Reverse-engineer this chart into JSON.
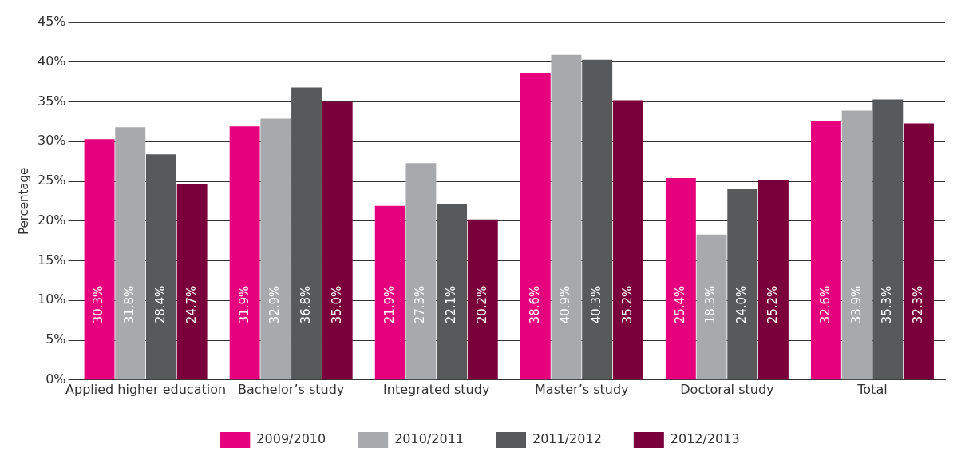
{
  "chart_data": {
    "type": "bar",
    "ylabel": "Percentage",
    "categories": [
      "Applied higher education",
      "Bachelor’s study",
      "Integrated study",
      "Master’s study",
      "Doctoral study",
      "Total"
    ],
    "series": [
      {
        "name": "2009/2010",
        "color": "#e6007e",
        "values": [
          30.3,
          31.9,
          21.9,
          38.6,
          25.4,
          32.6
        ],
        "value_labels": [
          "30.3%",
          "31.9%",
          "21.9%",
          "38.6%",
          "25.4%",
          "32.6%"
        ]
      },
      {
        "name": "2010/2011",
        "color": "#a7a9ac",
        "values": [
          31.8,
          32.9,
          27.3,
          40.9,
          18.3,
          33.9
        ],
        "value_labels": [
          "31.8%",
          "32.9%",
          "27.3%",
          "40.9%",
          "18.3%",
          "33.9%"
        ]
      },
      {
        "name": "2011/2012",
        "color": "#58595b",
        "values": [
          28.4,
          36.8,
          22.1,
          40.3,
          24.0,
          35.3
        ],
        "value_labels": [
          "28.4%",
          "36.8%",
          "22.1%",
          "40.3%",
          "24.0%",
          "35.3%"
        ]
      },
      {
        "name": "2012/2013",
        "color": "#7a003c",
        "values": [
          24.7,
          35.0,
          20.2,
          35.2,
          25.2,
          32.3
        ],
        "value_labels": [
          "24.7%",
          "35.0%",
          "20.2%",
          "35.2%",
          "25.2%",
          "32.3%"
        ]
      }
    ],
    "ylim": [
      0,
      45
    ],
    "yticks": [
      {
        "value": 0,
        "label": "0%"
      },
      {
        "value": 5,
        "label": "5%"
      },
      {
        "value": 10,
        "label": "10%"
      },
      {
        "value": 15,
        "label": "15%"
      },
      {
        "value": 20,
        "label": "20%"
      },
      {
        "value": 25,
        "label": "25%"
      },
      {
        "value": 30,
        "label": "30%"
      },
      {
        "value": 35,
        "label": "35%"
      },
      {
        "value": 40,
        "label": "40%"
      },
      {
        "value": 45,
        "label": "45%"
      }
    ],
    "grid": "y",
    "legend": "bottom"
  }
}
